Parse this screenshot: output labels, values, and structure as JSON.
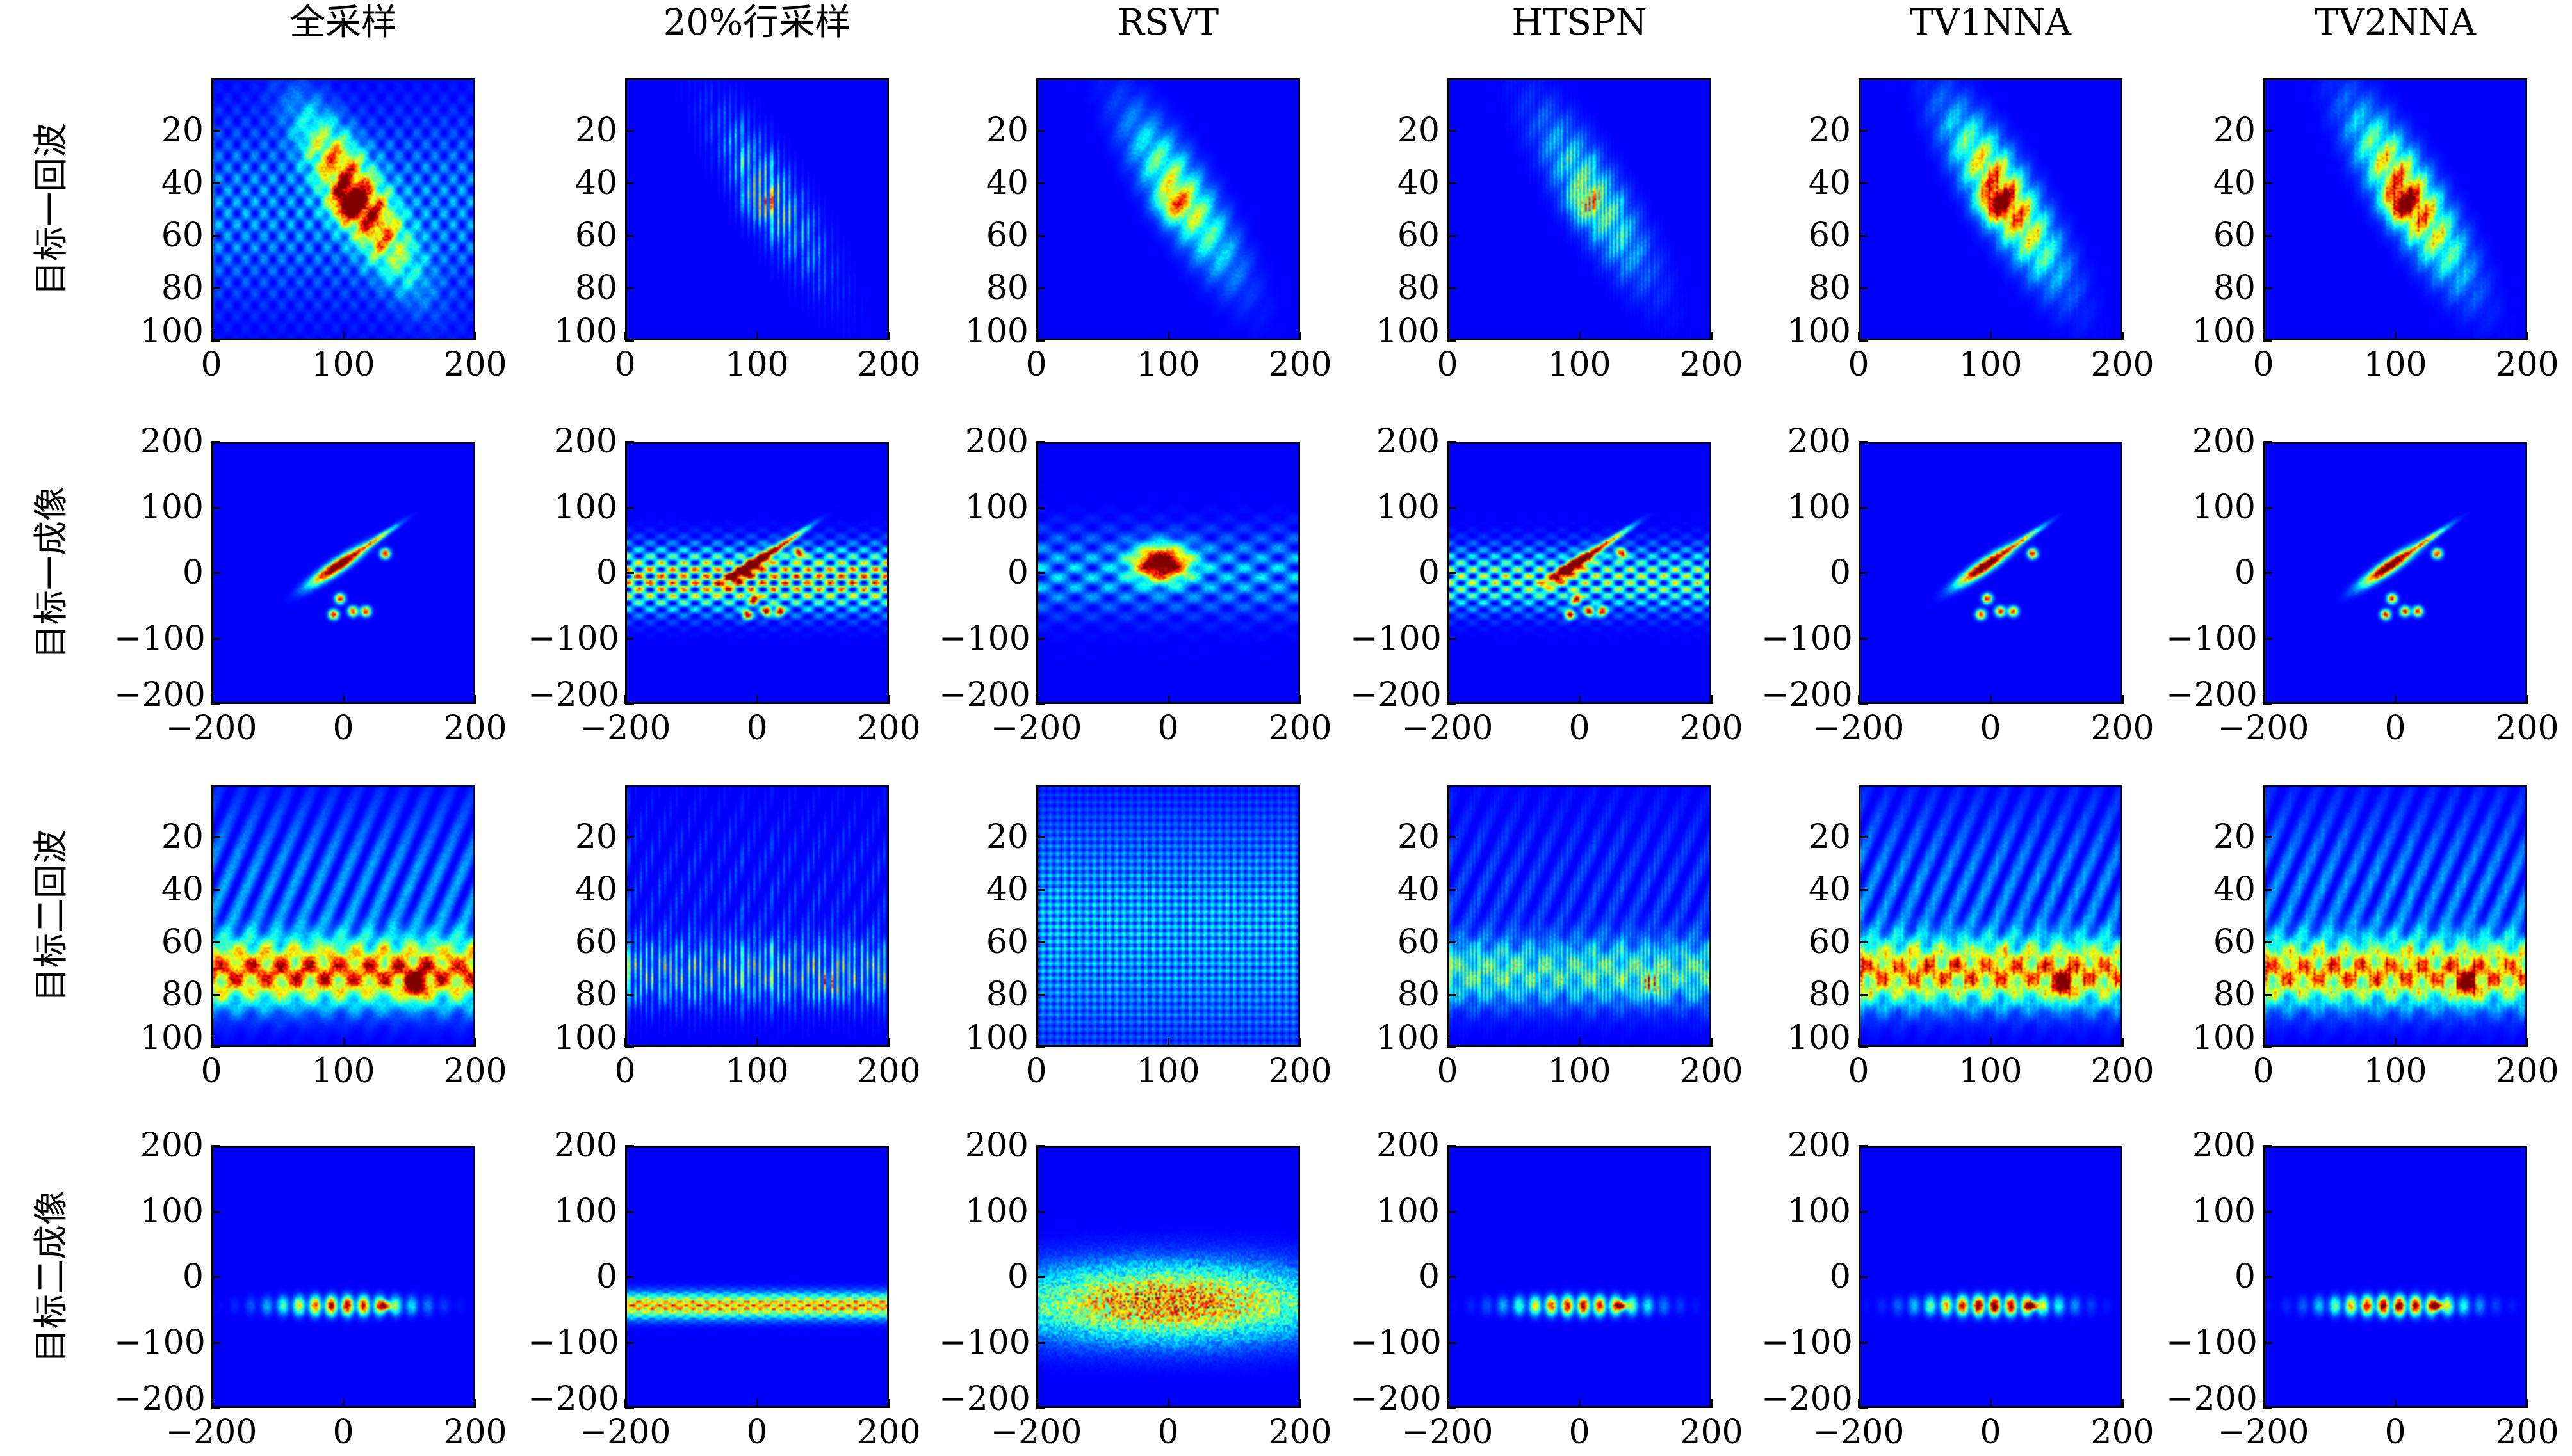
{
  "columns": [
    "全采样",
    "20%行采样",
    "RSVT",
    "HTSPN",
    "TV1NNA",
    "TV2NNA"
  ],
  "rows": [
    {
      "label": "目标一回波",
      "kind": "echo",
      "target": 1
    },
    {
      "label": "目标一成像",
      "kind": "image",
      "target": 1
    },
    {
      "label": "目标二回波",
      "kind": "echo",
      "target": 2
    },
    {
      "label": "目标二成像",
      "kind": "image",
      "target": 2
    }
  ],
  "chart_data": {
    "type": "heatmap",
    "colormap": "jet",
    "echo_axes": {
      "x_ticks": [
        "0",
        "100",
        "200"
      ],
      "y_ticks": [
        "20",
        "40",
        "60",
        "80",
        "100"
      ],
      "xlim": [
        0,
        200
      ],
      "ylim": [
        0,
        100
      ],
      "y_reversed": true
    },
    "image_axes": {
      "x_ticks": [
        "−200",
        "0",
        "200"
      ],
      "y_ticks": [
        "200",
        "100",
        "0",
        "−100",
        "−200"
      ],
      "xlim": [
        -200,
        200
      ],
      "ylim": [
        -200,
        200
      ]
    },
    "grid": false,
    "legend": "none"
  }
}
